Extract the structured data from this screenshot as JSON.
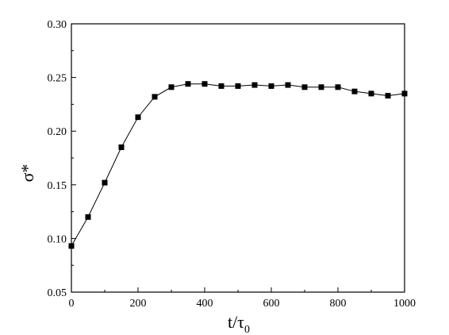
{
  "chart_data": {
    "type": "line",
    "xlabel": "t/τ",
    "xlabel_subscript": "0",
    "ylabel": "σ*",
    "xlim": [
      0,
      1000
    ],
    "ylim": [
      0.05,
      0.3
    ],
    "x_ticks": [
      0,
      200,
      400,
      600,
      800,
      1000
    ],
    "y_ticks": [
      0.05,
      0.1,
      0.15,
      0.2,
      0.25,
      0.3
    ],
    "y_tick_labels": [
      "0.05",
      "0.10",
      "0.15",
      "0.20",
      "0.25",
      "0.30"
    ],
    "marker": "square",
    "color": "#000000",
    "grid": false,
    "series": [
      {
        "x": [
          0,
          50,
          100,
          150,
          200,
          250,
          300,
          350,
          400,
          450,
          500,
          550,
          600,
          650,
          700,
          750,
          800,
          850,
          900,
          950,
          1000
        ],
        "y": [
          0.093,
          0.12,
          0.152,
          0.185,
          0.213,
          0.232,
          0.241,
          0.244,
          0.244,
          0.242,
          0.242,
          0.243,
          0.242,
          0.243,
          0.241,
          0.241,
          0.241,
          0.237,
          0.235,
          0.233,
          0.235
        ]
      }
    ]
  }
}
